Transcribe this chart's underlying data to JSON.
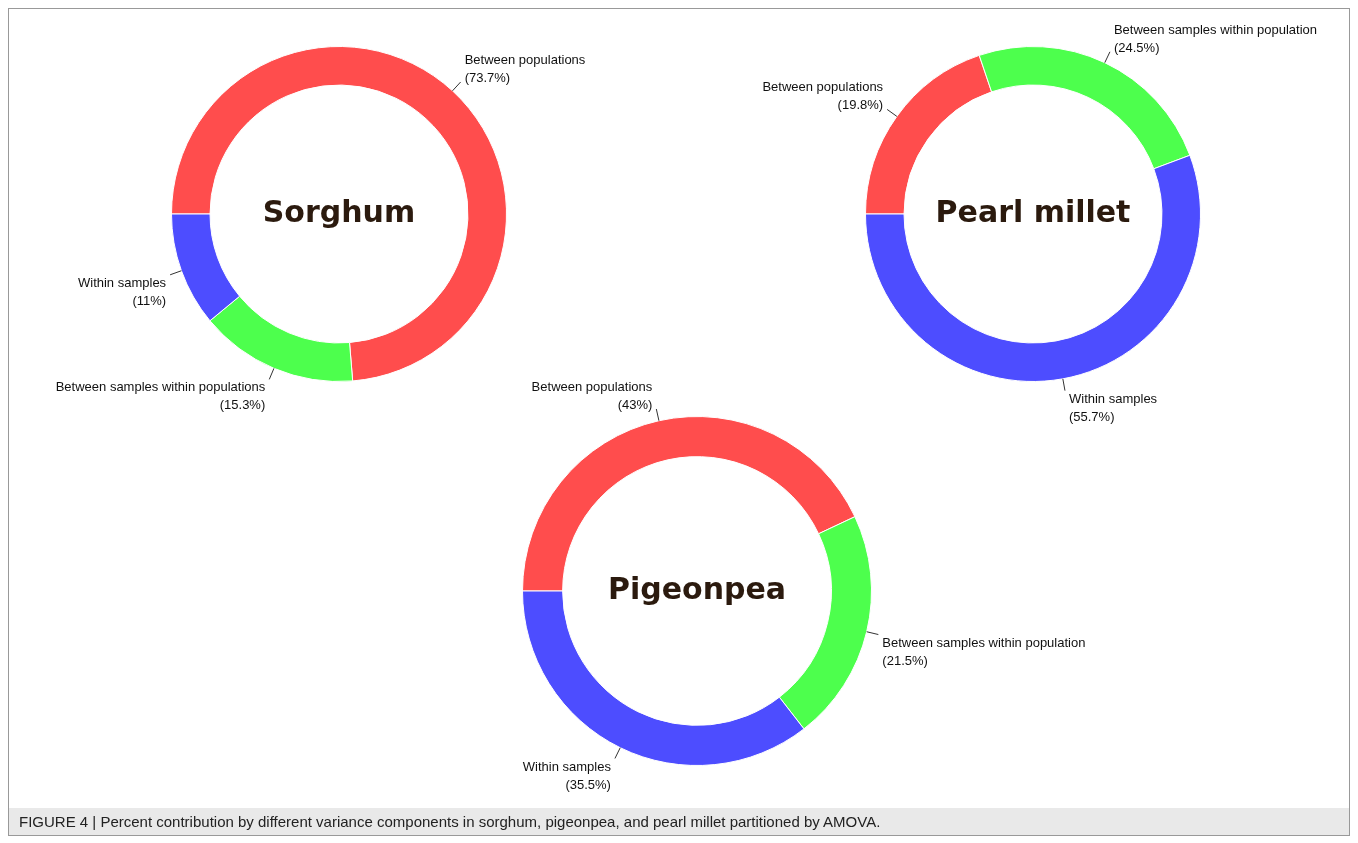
{
  "chart_data": [
    {
      "type": "donut",
      "title": "Sorghum",
      "categories": [
        "Between populations",
        "Between samples within populations",
        "Within samples"
      ],
      "values": [
        73.7,
        15.3,
        11
      ],
      "value_labels": [
        "(73.7%)",
        "(15.3%)",
        "(11%)"
      ],
      "colors": [
        "#ff4d4d",
        "#4dff4d",
        "#4d4dff"
      ],
      "legend": false
    },
    {
      "type": "donut",
      "title": "Pearl millet",
      "categories": [
        "Between populations",
        "Between samples within population",
        "Within samples"
      ],
      "values": [
        19.8,
        24.5,
        55.7
      ],
      "value_labels": [
        "(19.8%)",
        "(24.5%)",
        "(55.7%)"
      ],
      "colors": [
        "#ff4d4d",
        "#4dff4d",
        "#4d4dff"
      ],
      "legend": false
    },
    {
      "type": "donut",
      "title": "Pigeonpea",
      "categories": [
        "Between populations",
        "Between samples within population",
        "Within samples"
      ],
      "values": [
        43,
        21.5,
        35.5
      ],
      "value_labels": [
        "(43%)",
        "(21.5%)",
        "(35.5%)"
      ],
      "colors": [
        "#ff4d4d",
        "#4dff4d",
        "#4d4dff"
      ],
      "legend": false,
      "annotations": [
        "FIGURE 4 | Percent contribution by different variance components in sorghum, pigeonpea, and pearl millet partitioned by AMOVA."
      ]
    }
  ]
}
